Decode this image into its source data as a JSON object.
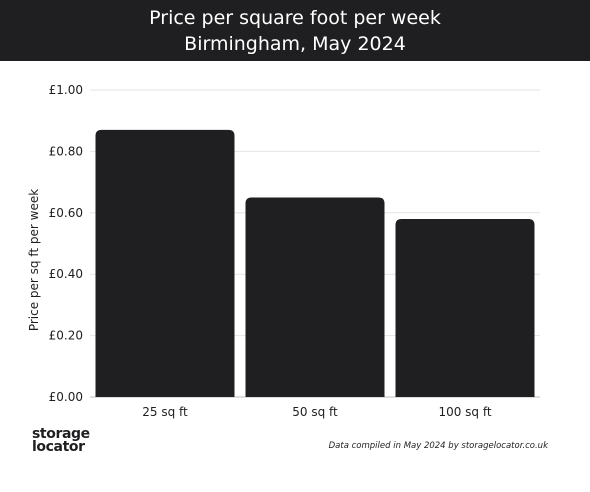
{
  "header": {
    "title": "Price per square foot per week",
    "subtitle": "Birmingham, May 2024"
  },
  "chart_data": {
    "type": "bar",
    "title": "Price per square foot per week",
    "subtitle": "Birmingham, May 2024",
    "categories": [
      "25 sq ft",
      "50 sq ft",
      "100 sq ft"
    ],
    "values": [
      0.87,
      0.65,
      0.58
    ],
    "xlabel": "",
    "ylabel": "Price per sq ft per week",
    "ylim": [
      0,
      1.0
    ],
    "yticks": [
      "£0.00",
      "£0.20",
      "£0.40",
      "£0.60",
      "£0.80",
      "£1.00"
    ],
    "ytick_values": [
      0,
      0.2,
      0.4,
      0.6,
      0.8,
      1.0
    ],
    "grid": true,
    "legend": "none",
    "bar_color": "#1f1f21"
  },
  "logo": {
    "line1": "storage",
    "line2": "locator"
  },
  "footnote": "Data compiled in May 2024 by storagelocator.co.uk"
}
